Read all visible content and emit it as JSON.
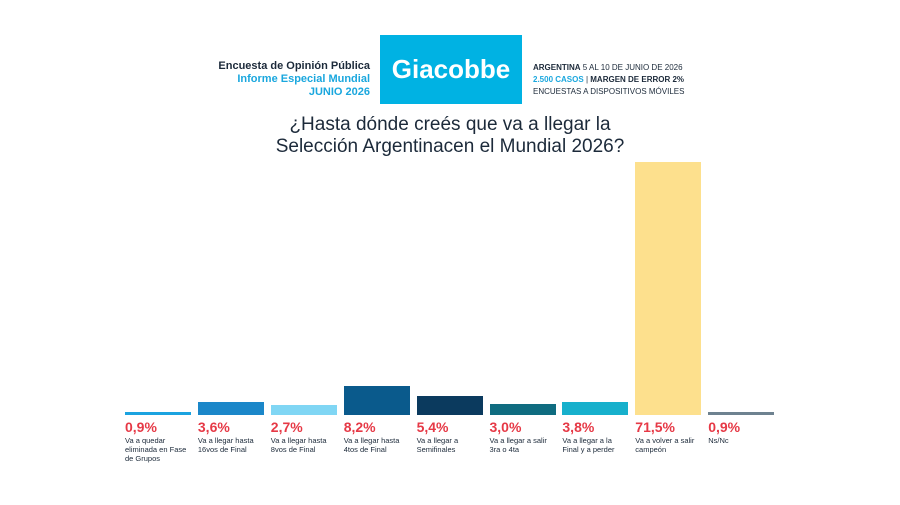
{
  "header": {
    "left": [
      "Encuesta de Opinión Pública",
      "Informe Especial Mundial",
      "JUNIO 2026"
    ],
    "logo": "Giacobbe",
    "right": {
      "country": "ARGENTINA",
      "dates": "5 AL 10 DE JUNIO DE 2026",
      "cases": "2.500 CASOS",
      "separator": "|",
      "margin": "MARGEN DE ERROR 2%",
      "method": "ENCUESTAS A DISPOSITIVOS MÓVILES"
    }
  },
  "chart_data": {
    "type": "bar",
    "title": [
      "¿Hasta dónde creés que va a llegar la",
      "Selección Argentinacen el Mundial 2026?"
    ],
    "categories": [
      "Va a quedar eliminada en Fase de Grupos",
      "Va a llegar hasta 16vos de Final",
      "Va a llegar hasta 8vos de Final",
      "Va a llegar hasta 4tos de Final",
      "Va a llegar a Semifinales",
      "Va a llegar a salir 3ra o 4ta",
      "Va a llegar a la Final y a perder",
      "Va a volver a salir campeón",
      "Ns/Nc"
    ],
    "values": [
      0.9,
      3.6,
      2.7,
      8.2,
      5.4,
      3.0,
      3.8,
      71.5,
      0.9
    ],
    "value_labels": [
      "0,9%",
      "3,6%",
      "2,7%",
      "8,2%",
      "5,4%",
      "3,0%",
      "3,8%",
      "71,5%",
      "0,9%"
    ],
    "colors": [
      "#1ba3e0",
      "#1b87c9",
      "#80d6f4",
      "#0a5a8c",
      "#0b3a5e",
      "#0f6c80",
      "#17b0cc",
      "#fde08d",
      "#6e8290"
    ]
  }
}
